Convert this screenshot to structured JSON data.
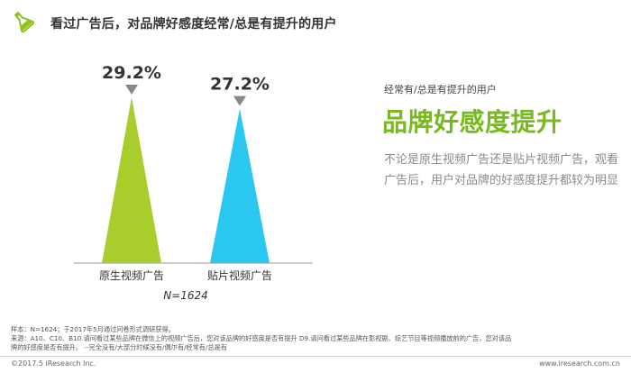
{
  "header": {
    "title": "看过广告后，对品牌好感度经常/总是有提升的用户",
    "icon": "flask-icon",
    "icon_color": "#8dc21f"
  },
  "chart_data": {
    "type": "bar",
    "categories": [
      "原生视频广告",
      "贴片视频广告"
    ],
    "values": [
      29.2,
      27.2
    ],
    "value_labels": [
      "29.2%",
      "27.2%"
    ],
    "colors": [
      "#aacd2e",
      "#2ac7f0"
    ],
    "sample_label": "N=1624",
    "ylim": [
      0,
      29.2
    ],
    "grid": false,
    "marker_color": "#888888"
  },
  "insight": {
    "subtitle": "经常有/总是有提升的用户",
    "headline": "品牌好感度提升",
    "body": "不论是原生视频广告还是贴片视频广告，观看广告后，用户对品牌的好感度提升都较为明显"
  },
  "footnotes": {
    "sample": "样本：N=1624；于2017年5月通过问卷形式调研获得。",
    "source_line1": "来源：A10、C10、B10.请问看过某些品牌在微信上的视频广告后，您对该品牌的好感度是否有提升  D9.请问看过某些品牌在影视剧、综艺节目等视频播放前的广告，您对该品",
    "source_line2": "牌的好感度是否有提升。 --完全没有/大部分时候没有/偶尔有/经常有/总是有"
  },
  "footer": {
    "copyright": "©2017.5 iResearch Inc.",
    "website": "www.iresearch.com.cn"
  }
}
